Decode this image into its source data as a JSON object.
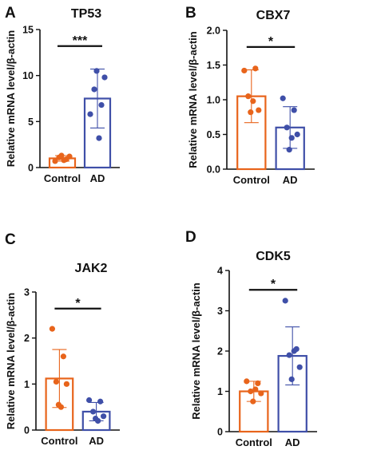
{
  "chart_data": [
    {
      "type": "bar",
      "panel": "A",
      "title": "TP53",
      "ylabel": "Relative mRNA level/β-actin",
      "categories": [
        "Control",
        "AD"
      ],
      "ylim": [
        0,
        15
      ],
      "yticks": [
        0,
        5,
        10,
        15
      ],
      "colors": [
        "#E8641B",
        "#3F4FA8"
      ],
      "means": [
        1.0,
        7.5
      ],
      "errors": [
        0.3,
        3.2
      ],
      "points": [
        [
          0.7,
          0.9,
          1.1,
          1.2,
          1.3,
          0.8
        ],
        [
          5.8,
          6.8,
          8.5,
          9.8,
          10.5,
          3.2
        ]
      ],
      "significance": "***"
    },
    {
      "type": "bar",
      "panel": "B",
      "title": "CBX7",
      "ylabel": "Relative mRNA level/β-actin",
      "categories": [
        "Control",
        "AD"
      ],
      "ylim": [
        0,
        2.0
      ],
      "yticks": [
        0.0,
        0.5,
        1.0,
        1.5,
        2.0
      ],
      "tick_decimals": 1,
      "colors": [
        "#E8641B",
        "#3F4FA8"
      ],
      "means": [
        1.05,
        0.6
      ],
      "errors": [
        0.38,
        0.3
      ],
      "points": [
        [
          1.42,
          1.45,
          1.05,
          0.85,
          0.82,
          0.98
        ],
        [
          1.02,
          0.85,
          0.6,
          0.5,
          0.28,
          0.45
        ]
      ],
      "significance": "*"
    },
    {
      "type": "bar",
      "panel": "C",
      "title": "JAK2",
      "ylabel": "Relative mRNA level/β-actin",
      "categories": [
        "Control",
        "AD"
      ],
      "ylim": [
        0,
        3
      ],
      "yticks": [
        0,
        1,
        2,
        3
      ],
      "colors": [
        "#E8641B",
        "#3F4FA8"
      ],
      "means": [
        1.12,
        0.4
      ],
      "errors": [
        0.63,
        0.2
      ],
      "points": [
        [
          2.2,
          1.6,
          1.05,
          1.0,
          0.55,
          0.5
        ],
        [
          0.65,
          0.62,
          0.4,
          0.3,
          0.25,
          0.2
        ]
      ],
      "significance": "*"
    },
    {
      "type": "bar",
      "panel": "D",
      "title": "CDK5",
      "ylabel": "Relative mRNA level/β-actin",
      "categories": [
        "Control",
        "AD"
      ],
      "ylim": [
        0,
        4
      ],
      "yticks": [
        0,
        1,
        2,
        3,
        4
      ],
      "colors": [
        "#E8641B",
        "#3F4FA8"
      ],
      "means": [
        1.0,
        1.88
      ],
      "errors": [
        0.25,
        0.72
      ],
      "points": [
        [
          1.25,
          1.2,
          1.0,
          0.95,
          0.75,
          1.05
        ],
        [
          3.25,
          2.05,
          1.9,
          1.6,
          1.3,
          2.0
        ]
      ],
      "significance": "*"
    }
  ]
}
